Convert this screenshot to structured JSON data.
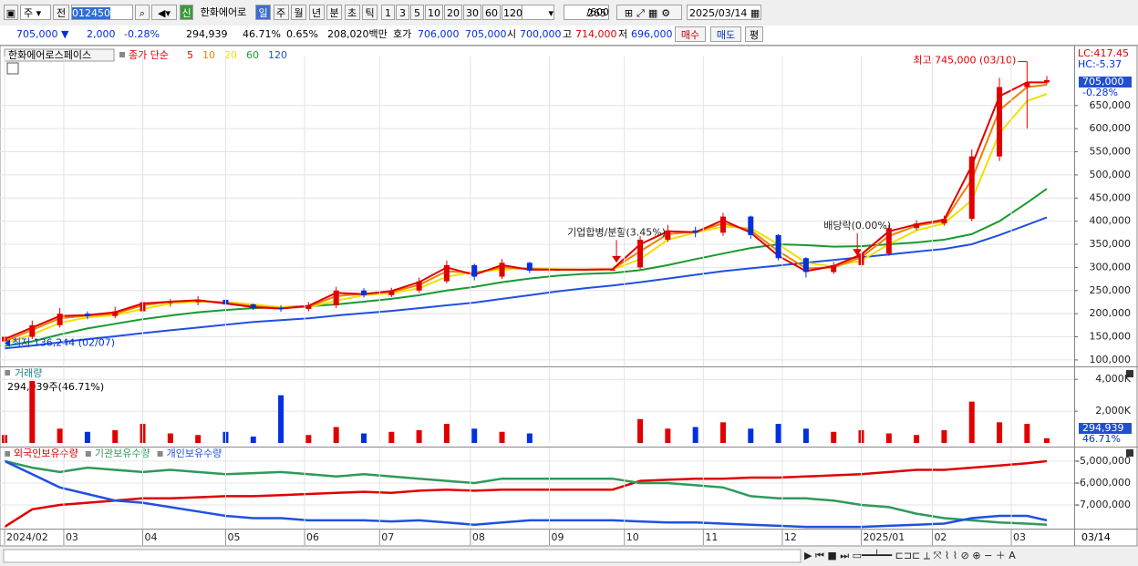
{
  "toolbar": {
    "period": "주",
    "prev": "전",
    "code": "012450",
    "badge": "신",
    "name": "한화에어로",
    "intervals": [
      "일",
      "주",
      "월",
      "년",
      "분",
      "초",
      "틱"
    ],
    "counts": [
      "1",
      "3",
      "5",
      "10",
      "20",
      "30",
      "60",
      "120"
    ],
    "count": "265",
    "max": "/600",
    "date": "2025/03/14"
  },
  "quote": {
    "price": "705,000 ▼",
    "change": "2,000",
    "change_pct": "-0.28%",
    "volume": "294,939",
    "volume_pct": "46.71%",
    "turnover": "0.65%",
    "amount": "208,020백만",
    "ask_label": "호가",
    "ask": "706,000",
    "bid": "705,000",
    "open_label": "시",
    "open": "700,000",
    "high_label": "고",
    "high": "714,000",
    "low_label": "저",
    "low": "696,000",
    "buy": "매수",
    "sell": "매도",
    "avg": "평"
  },
  "current_label": "03/14",
  "chart_data": [
    {
      "type": "candlestick",
      "title": "한화에어로스페이스",
      "ma_label": "종가 단순",
      "lc": "LC:417.45",
      "hc": "HC:-5.37",
      "price_box": {
        "value": "705,000",
        "change": "-0.28%"
      },
      "up_color": "#e00000",
      "down_color": "#0030e0",
      "grid": true,
      "x": [
        0,
        7,
        14,
        21,
        28,
        35,
        42,
        49,
        56,
        63,
        70,
        77,
        84,
        91,
        98,
        105,
        112,
        119,
        126,
        133,
        140,
        147,
        154,
        161,
        168,
        175,
        182,
        189,
        196,
        203,
        210,
        217,
        224,
        231,
        238,
        245,
        252,
        259,
        264
      ],
      "xlim": [
        0,
        264
      ],
      "open": [
        140000,
        150000,
        175000,
        200000,
        195000,
        205000,
        225000,
        225000,
        230000,
        220000,
        212000,
        210000,
        218000,
        250000,
        240000,
        250000,
        270000,
        305000,
        280000,
        310000,
        295000,
        295000,
        295000,
        300000,
        360000,
        380000,
        375000,
        410000,
        370000,
        320000,
        290000,
        305000,
        330000,
        385000,
        395000,
        405000,
        540000,
        690000,
        700000
      ],
      "high": [
        160000,
        185000,
        212000,
        205000,
        215000,
        240000,
        232000,
        238000,
        232000,
        222000,
        218000,
        225000,
        258000,
        255000,
        256000,
        278000,
        315000,
        308000,
        318000,
        312000,
        295000,
        295000,
        295000,
        368000,
        392000,
        388000,
        418000,
        412000,
        372000,
        322000,
        312000,
        338000,
        392000,
        402000,
        412000,
        555000,
        710000,
        745000,
        714000
      ],
      "low": [
        136244,
        145000,
        170000,
        188000,
        190000,
        198000,
        215000,
        218000,
        215000,
        208000,
        204000,
        205000,
        212000,
        235000,
        236000,
        245000,
        265000,
        272000,
        275000,
        288000,
        295000,
        295000,
        295000,
        296000,
        355000,
        365000,
        368000,
        362000,
        315000,
        278000,
        286000,
        300000,
        325000,
        380000,
        390000,
        400000,
        530000,
        600000,
        696000
      ],
      "close": [
        150000,
        175000,
        200000,
        195000,
        205000,
        225000,
        225000,
        230000,
        220000,
        212000,
        210000,
        218000,
        250000,
        240000,
        250000,
        270000,
        305000,
        280000,
        310000,
        293000,
        295000,
        295000,
        295000,
        360000,
        380000,
        375000,
        410000,
        370000,
        320000,
        290000,
        305000,
        330000,
        385000,
        395000,
        405000,
        540000,
        690000,
        700000,
        705000
      ],
      "ma": [
        {
          "name": "5",
          "color": "#e00000",
          "values": [
            145000,
            170000,
            195000,
            197000,
            203000,
            222000,
            226000,
            229000,
            222000,
            214000,
            211000,
            217000,
            245000,
            242000,
            249000,
            268000,
            300000,
            284000,
            305000,
            295000,
            295000,
            295000,
            296000,
            350000,
            378000,
            376000,
            402000,
            375000,
            325000,
            292000,
            303000,
            328000,
            378000,
            393000,
            403000,
            520000,
            670000,
            700000,
            700000
          ]
        },
        {
          "name": "10",
          "color": "#f08000",
          "values": [
            140000,
            165000,
            190000,
            196000,
            200000,
            218000,
            226000,
            228000,
            224000,
            216000,
            212000,
            215000,
            238000,
            243000,
            247000,
            262000,
            292000,
            288000,
            300000,
            297000,
            295000,
            295000,
            296000,
            335000,
            372000,
            377000,
            395000,
            380000,
            335000,
            298000,
            300000,
            322000,
            368000,
            390000,
            400000,
            490000,
            640000,
            690000,
            695000
          ]
        },
        {
          "name": "20",
          "color": "#f0e000",
          "values": [
            135000,
            155000,
            180000,
            192000,
            197000,
            210000,
            222000,
            226000,
            225000,
            220000,
            214000,
            214000,
            228000,
            240000,
            244000,
            255000,
            280000,
            290000,
            295000,
            298000,
            296000,
            295000,
            295000,
            318000,
            360000,
            375000,
            388000,
            385000,
            350000,
            310000,
            302000,
            315000,
            350000,
            380000,
            395000,
            445000,
            590000,
            660000,
            675000
          ]
        },
        {
          "name": "60",
          "color": "#1a9a30",
          "values": [
            130000,
            140000,
            155000,
            168000,
            178000,
            188000,
            196000,
            203000,
            208000,
            212000,
            214000,
            216000,
            220000,
            226000,
            232000,
            240000,
            250000,
            258000,
            268000,
            276000,
            282000,
            286000,
            288000,
            294000,
            305000,
            318000,
            330000,
            342000,
            350000,
            348000,
            345000,
            346000,
            350000,
            354000,
            360000,
            372000,
            400000,
            440000,
            470000
          ]
        },
        {
          "name": "120",
          "color": "#2050e0",
          "values": [
            125000,
            131000,
            138000,
            145000,
            151000,
            158000,
            164000,
            170000,
            176000,
            182000,
            186000,
            190000,
            196000,
            201000,
            206000,
            212000,
            218000,
            224000,
            232000,
            240000,
            248000,
            255000,
            261000,
            268000,
            276000,
            284000,
            292000,
            298000,
            304000,
            310000,
            316000,
            322000,
            328000,
            334000,
            340000,
            350000,
            370000,
            392000,
            408000
          ]
        }
      ],
      "annotations": [
        {
          "text": "최고 745,000 (03/10)",
          "x": 259,
          "y": 745000
        },
        {
          "text": "최저 136,244 (02/07)",
          "x": 0,
          "y": 136244
        },
        {
          "text": "기업합병/분할(3.45%)",
          "x": 155,
          "y": 300000
        },
        {
          "text": "배당락(0.00%)",
          "x": 216,
          "y": 315000
        }
      ],
      "ylim": [
        86000,
        756000
      ],
      "yticks": [
        {
          "value": 100000,
          "label": "100,000"
        },
        {
          "value": 150000,
          "label": "150,000"
        },
        {
          "value": 200000,
          "label": "200,000"
        },
        {
          "value": 250000,
          "label": "250,000"
        },
        {
          "value": 300000,
          "label": "300,000"
        },
        {
          "value": 350000,
          "label": "350,000"
        },
        {
          "value": 400000,
          "label": "400,000"
        },
        {
          "value": 450000,
          "label": "450,000"
        },
        {
          "value": 500000,
          "label": "500,000"
        },
        {
          "value": 550000,
          "label": "550,000"
        },
        {
          "value": 600000,
          "label": "600,000"
        },
        {
          "value": 650000,
          "label": "650,000"
        }
      ]
    },
    {
      "type": "bar",
      "title": "거래량",
      "subtitle": "294,939주(46.71%)",
      "last_box": {
        "value": "294,939",
        "pct": "46.71%"
      },
      "grid": true,
      "x": [
        0,
        7,
        14,
        21,
        28,
        35,
        42,
        49,
        56,
        63,
        70,
        77,
        84,
        91,
        98,
        105,
        112,
        119,
        126,
        133,
        140,
        147,
        154,
        161,
        168,
        175,
        182,
        189,
        196,
        203,
        210,
        217,
        224,
        231,
        238,
        245,
        252,
        259,
        264
      ],
      "xlim": [
        0,
        264
      ],
      "values": [
        500000,
        3900000,
        900000,
        700000,
        800000,
        1200000,
        600000,
        500000,
        700000,
        400000,
        3000000,
        500000,
        1000000,
        600000,
        700000,
        800000,
        1200000,
        900000,
        700000,
        600000,
        0,
        0,
        0,
        1500000,
        900000,
        1000000,
        1300000,
        900000,
        1200000,
        900000,
        700000,
        800000,
        600000,
        500000,
        800000,
        2600000,
        1300000,
        1200000,
        294939
      ],
      "ylim": [
        0,
        4700000
      ],
      "yticks": [
        {
          "value": 2000000,
          "label": "2,000K"
        },
        {
          "value": 4000000,
          "label": "4,000K"
        }
      ]
    },
    {
      "type": "line",
      "grid": true,
      "x": [
        0,
        7,
        14,
        21,
        28,
        35,
        42,
        49,
        56,
        63,
        70,
        77,
        84,
        91,
        98,
        105,
        112,
        119,
        126,
        133,
        140,
        147,
        154,
        161,
        168,
        175,
        182,
        189,
        196,
        203,
        210,
        217,
        224,
        231,
        238,
        245,
        252,
        259,
        264
      ],
      "xlim": [
        0,
        264
      ],
      "series": [
        {
          "name": "외국인보유수량",
          "color": "#e00000",
          "values": [
            -8000000,
            -7200000,
            -7000000,
            -6900000,
            -6800000,
            -6700000,
            -6700000,
            -6650000,
            -6600000,
            -6600000,
            -6550000,
            -6500000,
            -6450000,
            -6400000,
            -6450000,
            -6350000,
            -6300000,
            -6350000,
            -6300000,
            -6300000,
            -6300000,
            -6300000,
            -6300000,
            -5900000,
            -5850000,
            -5800000,
            -5800000,
            -5750000,
            -5750000,
            -5700000,
            -5650000,
            -5600000,
            -5500000,
            -5400000,
            -5400000,
            -5300000,
            -5200000,
            -5100000,
            -5000000
          ]
        },
        {
          "name": "기관보유수량",
          "color": "#2e9a5a",
          "values": [
            -5000000,
            -5300000,
            -5500000,
            -5300000,
            -5400000,
            -5500000,
            -5400000,
            -5500000,
            -5600000,
            -5550000,
            -5500000,
            -5600000,
            -5700000,
            -5600000,
            -5700000,
            -5800000,
            -5900000,
            -6000000,
            -5800000,
            -5800000,
            -5800000,
            -5800000,
            -5800000,
            -6000000,
            -6000000,
            -6100000,
            -6200000,
            -6600000,
            -6700000,
            -6700000,
            -6800000,
            -7000000,
            -7100000,
            -7400000,
            -7600000,
            -7700000,
            -7800000,
            -7850000,
            -7900000
          ]
        },
        {
          "name": "개인보유수량",
          "color": "#2050e0",
          "values": [
            -5000000,
            -5600000,
            -6200000,
            -6500000,
            -6800000,
            -6900000,
            -7100000,
            -7300000,
            -7500000,
            -7600000,
            -7600000,
            -7700000,
            -7700000,
            -7700000,
            -7750000,
            -7700000,
            -7800000,
            -7900000,
            -7800000,
            -7700000,
            -7700000,
            -7700000,
            -7700000,
            -7750000,
            -7800000,
            -7800000,
            -7850000,
            -7900000,
            -7950000,
            -8000000,
            -8000000,
            -8000000,
            -7950000,
            -7900000,
            -7850000,
            -7600000,
            -7500000,
            -7500000,
            -7700000
          ]
        }
      ],
      "ylim": [
        -8080000,
        -4380000
      ],
      "yticks": [
        {
          "value": -7000000,
          "label": "-7,000,000"
        },
        {
          "value": -6000000,
          "label": "-6,000,000"
        },
        {
          "value": -5000000,
          "label": "-5,000,000"
        }
      ],
      "xticks": [
        {
          "value": 0,
          "label": "2024/02"
        },
        {
          "value": 15,
          "label": "03"
        },
        {
          "value": 35,
          "label": "04"
        },
        {
          "value": 56,
          "label": "05"
        },
        {
          "value": 76,
          "label": "06"
        },
        {
          "value": 95,
          "label": "07"
        },
        {
          "value": 118,
          "label": "08"
        },
        {
          "value": 138,
          "label": "09"
        },
        {
          "value": 157,
          "label": "10"
        },
        {
          "value": 177,
          "label": "11"
        },
        {
          "value": 197,
          "label": "12"
        },
        {
          "value": 217,
          "label": "2025/01"
        },
        {
          "value": 235,
          "label": "02"
        },
        {
          "value": 255,
          "label": "03"
        }
      ]
    }
  ]
}
